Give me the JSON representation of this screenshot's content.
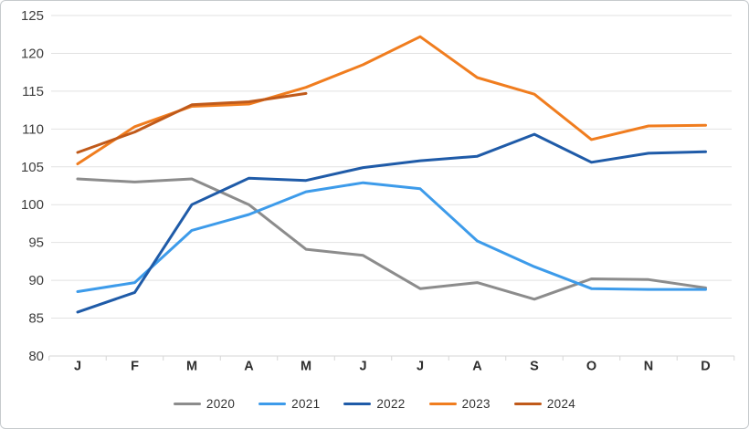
{
  "chart_data": {
    "type": "line",
    "title": "",
    "xlabel": "",
    "ylabel": "",
    "categories": [
      "J",
      "F",
      "M",
      "A",
      "M",
      "J",
      "J",
      "A",
      "S",
      "O",
      "N",
      "D"
    ],
    "series": [
      {
        "name": "2020",
        "color": "#8c8c8c",
        "values": [
          103.4,
          103.0,
          103.4,
          100.0,
          94.1,
          93.3,
          88.9,
          89.7,
          87.5,
          90.2,
          90.1,
          89.0
        ]
      },
      {
        "name": "2021",
        "color": "#3d9bea",
        "values": [
          88.5,
          89.7,
          96.6,
          98.7,
          101.7,
          102.9,
          102.1,
          95.2,
          91.8,
          88.9,
          88.8,
          88.8
        ]
      },
      {
        "name": "2022",
        "color": "#1f5ba8",
        "values": [
          85.8,
          88.4,
          100.0,
          103.5,
          103.2,
          104.9,
          105.8,
          106.4,
          109.3,
          105.6,
          106.8,
          107.0
        ]
      },
      {
        "name": "2023",
        "color": "#f07d1f",
        "values": [
          105.4,
          110.3,
          113.0,
          113.3,
          115.5,
          118.5,
          122.2,
          116.8,
          114.6,
          108.6,
          110.4,
          110.5
        ]
      },
      {
        "name": "2024",
        "color": "#c05a1a",
        "values": [
          106.9,
          109.6,
          113.2,
          113.6,
          114.7,
          null,
          null,
          null,
          null,
          null,
          null,
          null
        ]
      }
    ],
    "ylim": [
      80,
      125
    ],
    "ytick_step": 5,
    "ytick_labels": [
      "80",
      "85",
      "90",
      "95",
      "100",
      "105",
      "110",
      "115",
      "120",
      "125"
    ],
    "grid": "horizontal",
    "legend_position": "bottom-center"
  },
  "colors": {
    "gridline": "#e2e2e2",
    "axis_line": "#d6d6d6",
    "axis_text": "#3e3e3e",
    "legend_text": "#333333",
    "background": "#ffffff",
    "frame_border": "#c6cacd"
  }
}
